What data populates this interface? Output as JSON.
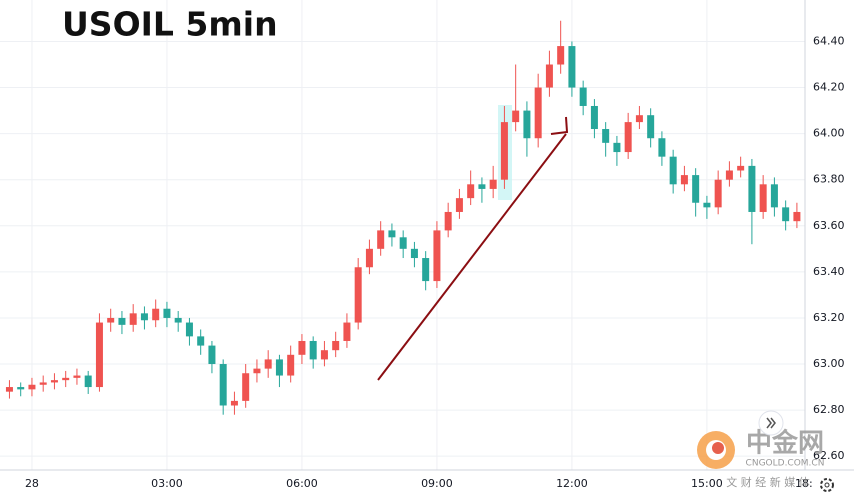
{
  "chart_data": {
    "type": "candlestick",
    "title": "USOIL 5min",
    "up_color": "#ef5350",
    "down_color": "#26a69a",
    "grid": true,
    "xlim": [
      -0.71,
      17.18
    ],
    "ylim": [
      62.54,
      64.58
    ],
    "xticks": [
      {
        "value": 0,
        "label": "28"
      },
      {
        "value": 3,
        "label": "03:00"
      },
      {
        "value": 6,
        "label": "06:00"
      },
      {
        "value": 9,
        "label": "09:00"
      },
      {
        "value": 12,
        "label": "12:00"
      },
      {
        "value": 15,
        "label": "15:00"
      },
      {
        "value": 18,
        "label": "18:"
      }
    ],
    "yticks": [
      {
        "value": 62.6,
        "label": "62.60"
      },
      {
        "value": 62.8,
        "label": "62.80"
      },
      {
        "value": 63,
        "label": "63.00"
      },
      {
        "value": 63.2,
        "label": "63.20"
      },
      {
        "value": 63.4,
        "label": "63.40"
      },
      {
        "value": 63.6,
        "label": "63.60"
      },
      {
        "value": 63.8,
        "label": "63.80"
      },
      {
        "value": 64,
        "label": "64.00"
      },
      {
        "value": 64.2,
        "label": "64.20"
      },
      {
        "value": 64.4,
        "label": "64.40"
      }
    ],
    "candles": [
      [
        -0.5,
        62.88,
        62.93,
        62.85,
        62.9
      ],
      [
        -0.25,
        62.9,
        62.92,
        62.86,
        62.89
      ],
      [
        0,
        62.89,
        62.94,
        62.86,
        62.91
      ],
      [
        0.25,
        62.91,
        62.95,
        62.88,
        62.92
      ],
      [
        0.5,
        62.92,
        62.96,
        62.89,
        62.93
      ],
      [
        0.75,
        62.93,
        62.97,
        62.9,
        62.94
      ],
      [
        1,
        62.94,
        62.98,
        62.91,
        62.95
      ],
      [
        1.25,
        62.95,
        62.97,
        62.87,
        62.9
      ],
      [
        1.5,
        62.9,
        63.22,
        62.88,
        63.18
      ],
      [
        1.75,
        63.18,
        63.24,
        63.14,
        63.2
      ],
      [
        2,
        63.2,
        63.23,
        63.13,
        63.17
      ],
      [
        2.25,
        63.17,
        63.26,
        63.14,
        63.22
      ],
      [
        2.5,
        63.22,
        63.25,
        63.15,
        63.19
      ],
      [
        2.75,
        63.19,
        63.28,
        63.16,
        63.24
      ],
      [
        3,
        63.24,
        63.27,
        63.16,
        63.2
      ],
      [
        3.25,
        63.2,
        63.23,
        63.14,
        63.18
      ],
      [
        3.5,
        63.18,
        63.2,
        63.08,
        63.12
      ],
      [
        3.75,
        63.12,
        63.15,
        63.04,
        63.08
      ],
      [
        4,
        63.08,
        63.1,
        62.96,
        63.0
      ],
      [
        4.25,
        63.0,
        63.02,
        62.78,
        62.82
      ],
      [
        4.5,
        62.82,
        62.88,
        62.78,
        62.84
      ],
      [
        4.75,
        62.84,
        63.0,
        62.81,
        62.96
      ],
      [
        5,
        62.96,
        63.02,
        62.92,
        62.98
      ],
      [
        5.25,
        62.98,
        63.06,
        62.94,
        63.02
      ],
      [
        5.5,
        63.02,
        63.04,
        62.9,
        62.95
      ],
      [
        5.75,
        62.95,
        63.08,
        62.92,
        63.04
      ],
      [
        6,
        63.04,
        63.13,
        63.0,
        63.1
      ],
      [
        6.25,
        63.1,
        63.12,
        62.98,
        63.02
      ],
      [
        6.5,
        63.02,
        63.1,
        62.99,
        63.06
      ],
      [
        6.75,
        63.06,
        63.14,
        63.03,
        63.1
      ],
      [
        7,
        63.1,
        63.22,
        63.07,
        63.18
      ],
      [
        7.25,
        63.18,
        63.46,
        63.15,
        63.42
      ],
      [
        7.5,
        63.42,
        63.54,
        63.39,
        63.5
      ],
      [
        7.75,
        63.5,
        63.62,
        63.47,
        63.58
      ],
      [
        8,
        63.58,
        63.61,
        63.51,
        63.55
      ],
      [
        8.25,
        63.55,
        63.58,
        63.46,
        63.5
      ],
      [
        8.5,
        63.5,
        63.53,
        63.42,
        63.46
      ],
      [
        8.75,
        63.46,
        63.49,
        63.32,
        63.36
      ],
      [
        9,
        63.36,
        63.62,
        63.33,
        63.58
      ],
      [
        9.25,
        63.58,
        63.7,
        63.55,
        63.66
      ],
      [
        9.5,
        63.66,
        63.76,
        63.63,
        63.72
      ],
      [
        9.75,
        63.72,
        63.84,
        63.69,
        63.78
      ],
      [
        10,
        63.78,
        63.81,
        63.7,
        63.76
      ],
      [
        10.25,
        63.76,
        63.86,
        63.72,
        63.8
      ],
      [
        10.5,
        63.8,
        64.12,
        63.76,
        64.05
      ],
      [
        10.75,
        64.05,
        64.3,
        64.01,
        64.1
      ],
      [
        11,
        64.1,
        64.14,
        63.9,
        63.98
      ],
      [
        11.25,
        63.98,
        64.26,
        63.94,
        64.2
      ],
      [
        11.5,
        64.2,
        64.36,
        64.16,
        64.3
      ],
      [
        11.75,
        64.3,
        64.49,
        64.26,
        64.38
      ],
      [
        12,
        64.38,
        64.4,
        64.16,
        64.2
      ],
      [
        12.25,
        64.2,
        64.23,
        64.08,
        64.12
      ],
      [
        12.5,
        64.12,
        64.15,
        63.98,
        64.02
      ],
      [
        12.75,
        64.02,
        64.05,
        63.9,
        63.96
      ],
      [
        13,
        63.96,
        63.99,
        63.86,
        63.92
      ],
      [
        13.25,
        63.92,
        64.09,
        63.89,
        64.05
      ],
      [
        13.5,
        64.05,
        64.12,
        64.02,
        64.08
      ],
      [
        13.75,
        64.08,
        64.11,
        63.94,
        63.98
      ],
      [
        14,
        63.98,
        64.01,
        63.86,
        63.9
      ],
      [
        14.25,
        63.9,
        63.93,
        63.74,
        63.78
      ],
      [
        14.5,
        63.78,
        63.86,
        63.75,
        63.82
      ],
      [
        14.75,
        63.82,
        63.85,
        63.64,
        63.7
      ],
      [
        15,
        63.7,
        63.73,
        63.63,
        63.68
      ],
      [
        15.25,
        63.68,
        63.84,
        63.65,
        63.8
      ],
      [
        15.5,
        63.8,
        63.88,
        63.77,
        63.84
      ],
      [
        15.75,
        63.84,
        63.9,
        63.81,
        63.86
      ],
      [
        16,
        63.86,
        63.89,
        63.52,
        63.66
      ],
      [
        16.25,
        63.66,
        63.82,
        63.63,
        63.78
      ],
      [
        16.5,
        63.78,
        63.81,
        63.64,
        63.68
      ],
      [
        16.75,
        63.68,
        63.71,
        63.58,
        63.62
      ],
      [
        17,
        63.62,
        63.7,
        63.59,
        63.66
      ]
    ],
    "watermark": {
      "name": "中金网",
      "url": "CNGOLD.COM.CN",
      "slogan": "文 财 经 新 媒 体"
    }
  }
}
